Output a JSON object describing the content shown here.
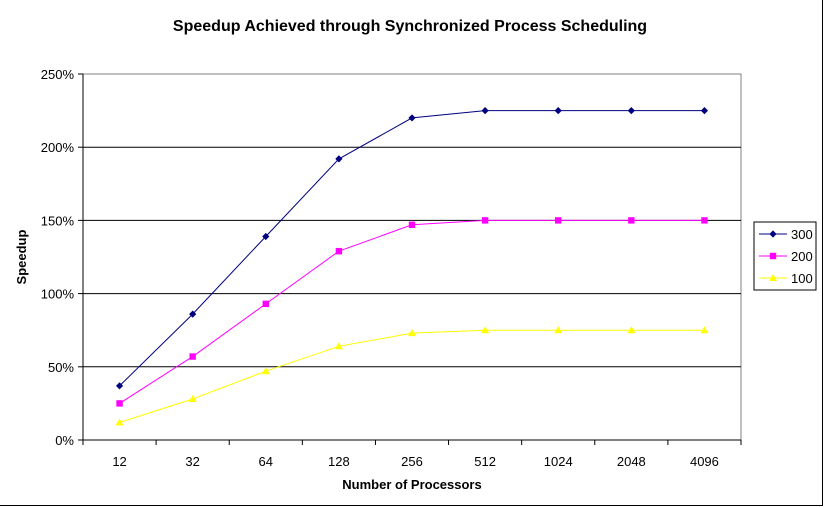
{
  "chart_data": {
    "type": "line",
    "title": "Speedup Achieved through Synchronized Process Scheduling",
    "xlabel": "Number of Processors",
    "ylabel": "Speedup",
    "categories": [
      "12",
      "32",
      "64",
      "128",
      "256",
      "512",
      "1024",
      "2048",
      "4096"
    ],
    "ylim": [
      0,
      2.5
    ],
    "yticks": [
      "0%",
      "50%",
      "100%",
      "150%",
      "200%",
      "250%"
    ],
    "grid": true,
    "legend_position": "right",
    "series": [
      {
        "name": "300",
        "color": "#000080",
        "marker": "diamond",
        "values": [
          0.37,
          0.86,
          1.39,
          1.92,
          2.2,
          2.25,
          2.25,
          2.25,
          2.25
        ]
      },
      {
        "name": "200",
        "color": "#FF00FF",
        "marker": "square",
        "values": [
          0.25,
          0.57,
          0.93,
          1.29,
          1.47,
          1.5,
          1.5,
          1.5,
          1.5
        ]
      },
      {
        "name": "100",
        "color": "#FFFF00",
        "marker": "triangle",
        "values": [
          0.12,
          0.28,
          0.47,
          0.64,
          0.73,
          0.75,
          0.75,
          0.75,
          0.75
        ]
      }
    ]
  }
}
